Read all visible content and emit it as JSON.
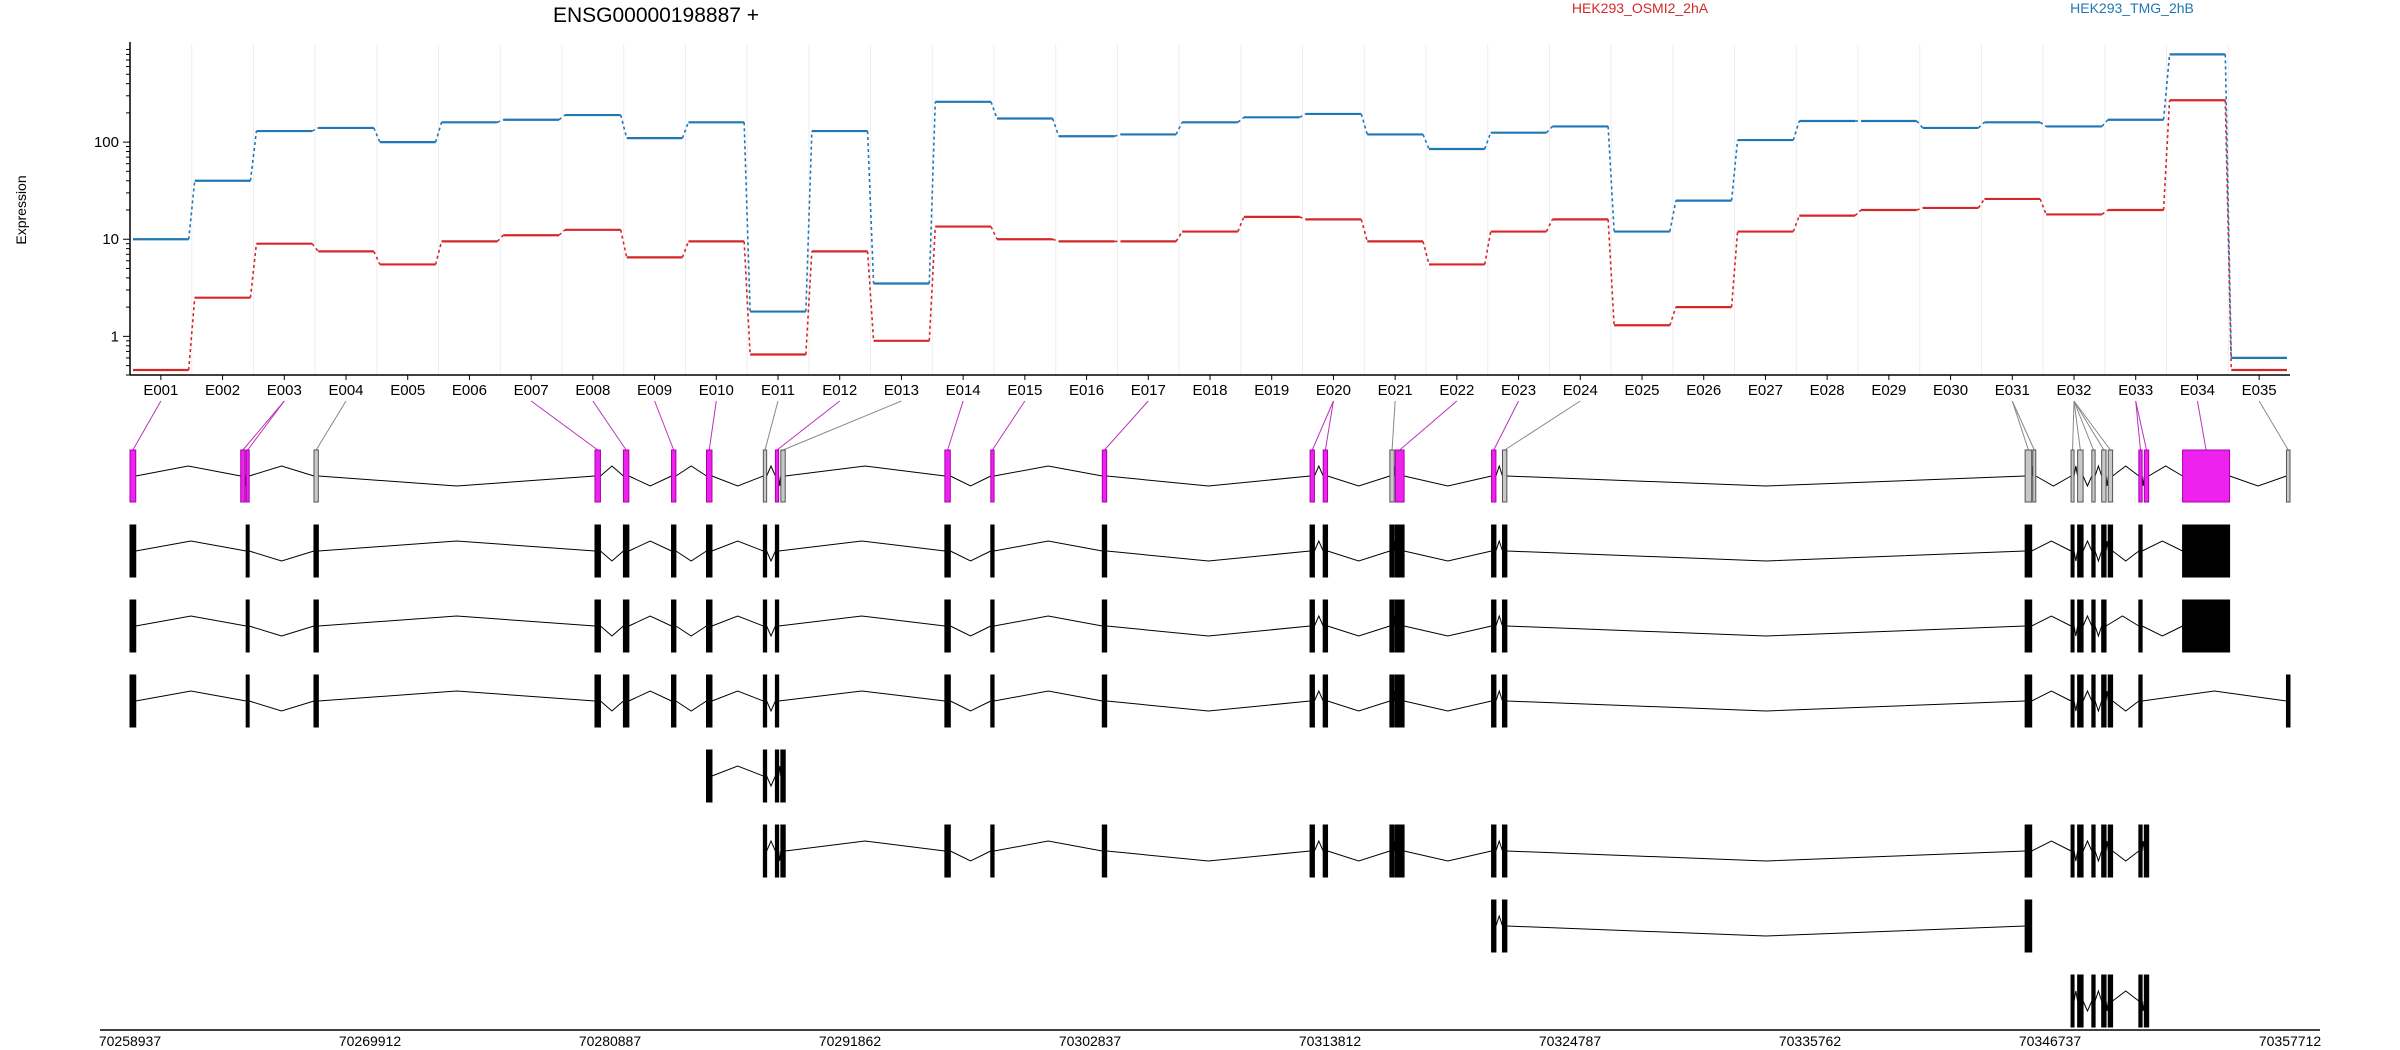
{
  "title": "ENSG00000198887 +",
  "ylabel": "Expression",
  "legend": [
    {
      "name": "HEK293_OSMI2_2hA",
      "color": "#d62728"
    },
    {
      "name": "HEK293_TMG_2hB",
      "color": "#1f77b4"
    }
  ],
  "exon_labels": [
    "E001",
    "E002",
    "E003",
    "E004",
    "E005",
    "E006",
    "E007",
    "E008",
    "E009",
    "E010",
    "E011",
    "E012",
    "E013",
    "E014",
    "E015",
    "E016",
    "E017",
    "E018",
    "E019",
    "E020",
    "E021",
    "E022",
    "E023",
    "E024",
    "E025",
    "E026",
    "E027",
    "E028",
    "E029",
    "E030",
    "E031",
    "E032",
    "E033",
    "E034",
    "E035"
  ],
  "y_ticks": [
    1,
    10,
    100
  ],
  "coordinate_ticks": [
    "70258937",
    "70269912",
    "70280887",
    "70291862",
    "70302837",
    "70313812",
    "70324787",
    "70335762",
    "70346737",
    "70357712"
  ],
  "highlight_color": "#ee22ee",
  "chart_data": {
    "type": "line",
    "title": "ENSG00000198887 +",
    "ylabel": "Expression",
    "xlabel": "",
    "y_scale": "log",
    "ylim": [
      0.4,
      1000
    ],
    "categories": [
      "E001",
      "E002",
      "E003",
      "E004",
      "E005",
      "E006",
      "E007",
      "E008",
      "E009",
      "E010",
      "E011",
      "E012",
      "E013",
      "E014",
      "E015",
      "E016",
      "E017",
      "E018",
      "E019",
      "E020",
      "E021",
      "E022",
      "E023",
      "E024",
      "E025",
      "E026",
      "E027",
      "E028",
      "E029",
      "E030",
      "E031",
      "E032",
      "E033",
      "E034",
      "E035"
    ],
    "series": [
      {
        "name": "HEK293_OSMI2_2hA",
        "color": "#d62728",
        "values": [
          0.45,
          2.5,
          9,
          7.5,
          5.5,
          9.5,
          11,
          12.5,
          6.5,
          9.5,
          0.65,
          7.5,
          0.9,
          13.5,
          10,
          9.5,
          9.5,
          12,
          17,
          16,
          9.5,
          5.5,
          12,
          16,
          1.3,
          2,
          12,
          17.5,
          20,
          21,
          26,
          18,
          20,
          270,
          0.45
        ]
      },
      {
        "name": "HEK293_TMG_2hB",
        "color": "#1f77b4",
        "values": [
          10,
          40,
          130,
          140,
          100,
          160,
          170,
          190,
          110,
          160,
          1.8,
          130,
          3.5,
          260,
          175,
          115,
          120,
          160,
          180,
          195,
          120,
          85,
          125,
          145,
          12,
          25,
          105,
          165,
          165,
          140,
          160,
          145,
          170,
          800,
          0.6
        ]
      }
    ],
    "highlighted_exons": [
      "E001",
      "E003",
      "E007",
      "E008",
      "E009",
      "E010",
      "E012",
      "E014",
      "E015",
      "E017",
      "E020",
      "E022",
      "E023",
      "E033",
      "E034"
    ],
    "gene_range": [
      70258937,
      70357712
    ],
    "grid": true
  }
}
